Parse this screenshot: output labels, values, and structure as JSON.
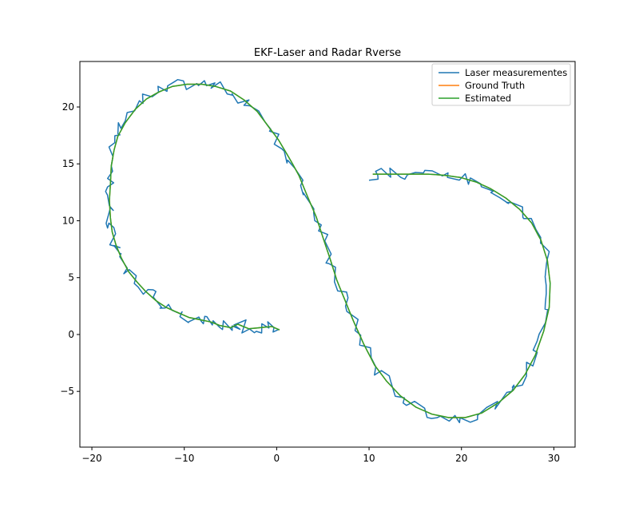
{
  "chart_data": {
    "type": "line",
    "title": "EKF-Laser and Radar Rverse",
    "xlabel": "",
    "ylabel": "",
    "xlim": [
      -21.3,
      32.3
    ],
    "ylim": [
      -9.9,
      24.0
    ],
    "x_ticks": [
      -20,
      -10,
      0,
      10,
      20,
      30
    ],
    "y_ticks": [
      -5,
      0,
      5,
      10,
      15,
      20
    ],
    "x_tick_labels": [
      "−20",
      "−10",
      "0",
      "10",
      "20",
      "30"
    ],
    "y_tick_labels": [
      "−5",
      "0",
      "5",
      "10",
      "15",
      "20"
    ],
    "grid": false,
    "legend_position": "top-right",
    "series": [
      {
        "name": "Laser measurementes",
        "color": "#1f77b4",
        "noisy": true,
        "points": [
          [
            0.3,
            0.4
          ],
          [
            -0.5,
            0.7
          ],
          [
            -1.8,
            0.6
          ],
          [
            -3.0,
            0.5
          ],
          [
            -4.2,
            0.9
          ],
          [
            -5.0,
            0.6
          ],
          [
            -6.2,
            0.8
          ],
          [
            -7.1,
            1.1
          ],
          [
            -8.3,
            1.3
          ],
          [
            -9.5,
            1.5
          ],
          [
            -10.9,
            2.0
          ],
          [
            -12.0,
            2.4
          ],
          [
            -13.1,
            3.0
          ],
          [
            -14.2,
            3.8
          ],
          [
            -15.1,
            4.6
          ],
          [
            -16.0,
            5.5
          ],
          [
            -16.8,
            6.7
          ],
          [
            -17.4,
            7.9
          ],
          [
            -17.8,
            9.0
          ],
          [
            -18.0,
            10.3
          ],
          [
            -18.1,
            11.8
          ],
          [
            -18.0,
            13.2
          ],
          [
            -17.9,
            14.8
          ],
          [
            -17.6,
            16.2
          ],
          [
            -17.2,
            17.4
          ],
          [
            -16.4,
            18.6
          ],
          [
            -15.3,
            19.8
          ],
          [
            -14.1,
            20.7
          ],
          [
            -12.8,
            21.3
          ],
          [
            -11.3,
            21.8
          ],
          [
            -9.7,
            22.0
          ],
          [
            -8.1,
            22.0
          ],
          [
            -6.6,
            21.8
          ],
          [
            -5.0,
            21.4
          ],
          [
            -3.5,
            20.6
          ],
          [
            -2.1,
            19.6
          ],
          [
            -1.0,
            18.4
          ],
          [
            0.2,
            17.1
          ],
          [
            1.3,
            15.6
          ],
          [
            2.4,
            14.0
          ],
          [
            3.3,
            12.2
          ],
          [
            4.3,
            10.3
          ],
          [
            5.1,
            8.3
          ],
          [
            5.8,
            6.6
          ],
          [
            6.5,
            4.8
          ],
          [
            7.4,
            3.0
          ],
          [
            8.3,
            1.2
          ],
          [
            9.4,
            -0.8
          ],
          [
            10.6,
            -2.7
          ],
          [
            11.9,
            -4.1
          ],
          [
            13.4,
            -5.4
          ],
          [
            15.1,
            -6.4
          ],
          [
            16.8,
            -7.0
          ],
          [
            18.6,
            -7.3
          ],
          [
            20.4,
            -7.3
          ],
          [
            22.2,
            -6.9
          ],
          [
            24.0,
            -6.0
          ],
          [
            25.6,
            -4.9
          ],
          [
            26.9,
            -3.5
          ],
          [
            28.0,
            -1.8
          ],
          [
            28.9,
            0.3
          ],
          [
            29.5,
            2.4
          ],
          [
            29.6,
            4.5
          ],
          [
            29.3,
            6.5
          ],
          [
            28.6,
            8.3
          ],
          [
            27.6,
            9.8
          ],
          [
            26.3,
            11.0
          ],
          [
            24.8,
            12.0
          ],
          [
            23.2,
            12.8
          ],
          [
            21.6,
            13.4
          ],
          [
            19.9,
            13.8
          ],
          [
            18.1,
            14.0
          ],
          [
            16.4,
            14.1
          ],
          [
            14.6,
            14.1
          ],
          [
            12.8,
            14.1
          ],
          [
            11.0,
            14.1
          ],
          [
            10.4,
            14.1
          ]
        ]
      },
      {
        "name": "Ground Truth",
        "color": "#ff7f0e",
        "noisy": false,
        "points": [
          [
            0.3,
            0.4
          ],
          [
            -0.5,
            0.7
          ],
          [
            -1.8,
            0.6
          ],
          [
            -3.0,
            0.5
          ],
          [
            -4.2,
            0.9
          ],
          [
            -5.0,
            0.6
          ],
          [
            -6.2,
            0.8
          ],
          [
            -7.1,
            1.1
          ],
          [
            -8.3,
            1.3
          ],
          [
            -9.5,
            1.5
          ],
          [
            -10.9,
            2.0
          ],
          [
            -12.0,
            2.4
          ],
          [
            -13.1,
            3.0
          ],
          [
            -14.2,
            3.8
          ],
          [
            -15.1,
            4.6
          ],
          [
            -16.0,
            5.5
          ],
          [
            -16.8,
            6.7
          ],
          [
            -17.4,
            7.9
          ],
          [
            -17.8,
            9.0
          ],
          [
            -18.0,
            10.3
          ],
          [
            -18.1,
            11.8
          ],
          [
            -18.0,
            13.2
          ],
          [
            -17.9,
            14.8
          ],
          [
            -17.6,
            16.2
          ],
          [
            -17.2,
            17.4
          ],
          [
            -16.4,
            18.6
          ],
          [
            -15.3,
            19.8
          ],
          [
            -14.1,
            20.7
          ],
          [
            -12.8,
            21.3
          ],
          [
            -11.3,
            21.8
          ],
          [
            -9.7,
            22.0
          ],
          [
            -8.1,
            22.0
          ],
          [
            -6.6,
            21.8
          ],
          [
            -5.0,
            21.4
          ],
          [
            -3.5,
            20.6
          ],
          [
            -2.1,
            19.6
          ],
          [
            -1.0,
            18.4
          ],
          [
            0.2,
            17.1
          ],
          [
            1.3,
            15.6
          ],
          [
            2.4,
            14.0
          ],
          [
            3.3,
            12.2
          ],
          [
            4.3,
            10.3
          ],
          [
            5.1,
            8.3
          ],
          [
            5.8,
            6.6
          ],
          [
            6.5,
            4.8
          ],
          [
            7.4,
            3.0
          ],
          [
            8.3,
            1.2
          ],
          [
            9.4,
            -0.8
          ],
          [
            10.6,
            -2.7
          ],
          [
            11.9,
            -4.1
          ],
          [
            13.4,
            -5.4
          ],
          [
            15.1,
            -6.4
          ],
          [
            16.8,
            -7.0
          ],
          [
            18.6,
            -7.3
          ],
          [
            20.4,
            -7.3
          ],
          [
            22.2,
            -6.9
          ],
          [
            24.0,
            -6.0
          ],
          [
            25.6,
            -4.9
          ],
          [
            26.9,
            -3.5
          ],
          [
            28.0,
            -1.8
          ],
          [
            28.9,
            0.3
          ],
          [
            29.5,
            2.4
          ],
          [
            29.6,
            4.5
          ],
          [
            29.3,
            6.5
          ],
          [
            28.6,
            8.3
          ],
          [
            27.6,
            9.8
          ],
          [
            26.3,
            11.0
          ],
          [
            24.8,
            12.0
          ],
          [
            23.2,
            12.8
          ],
          [
            21.6,
            13.4
          ],
          [
            19.9,
            13.8
          ],
          [
            18.1,
            14.0
          ],
          [
            16.4,
            14.1
          ],
          [
            14.6,
            14.1
          ],
          [
            12.8,
            14.1
          ],
          [
            11.0,
            14.1
          ],
          [
            10.4,
            14.1
          ]
        ]
      },
      {
        "name": "Estimated",
        "color": "#2ca02c",
        "noisy": false,
        "points": [
          [
            0.3,
            0.4
          ],
          [
            -0.5,
            0.7
          ],
          [
            -1.8,
            0.6
          ],
          [
            -3.0,
            0.5
          ],
          [
            -4.2,
            0.9
          ],
          [
            -5.0,
            0.6
          ],
          [
            -6.2,
            0.8
          ],
          [
            -7.1,
            1.1
          ],
          [
            -8.3,
            1.3
          ],
          [
            -9.5,
            1.5
          ],
          [
            -10.9,
            2.0
          ],
          [
            -12.0,
            2.4
          ],
          [
            -13.1,
            3.0
          ],
          [
            -14.2,
            3.8
          ],
          [
            -15.1,
            4.6
          ],
          [
            -16.0,
            5.5
          ],
          [
            -16.8,
            6.7
          ],
          [
            -17.4,
            7.9
          ],
          [
            -17.8,
            9.0
          ],
          [
            -18.0,
            10.3
          ],
          [
            -18.1,
            11.8
          ],
          [
            -18.0,
            13.2
          ],
          [
            -17.9,
            14.8
          ],
          [
            -17.6,
            16.2
          ],
          [
            -17.2,
            17.4
          ],
          [
            -16.4,
            18.6
          ],
          [
            -15.3,
            19.8
          ],
          [
            -14.1,
            20.7
          ],
          [
            -12.8,
            21.3
          ],
          [
            -11.3,
            21.8
          ],
          [
            -9.7,
            22.0
          ],
          [
            -8.1,
            22.0
          ],
          [
            -6.6,
            21.8
          ],
          [
            -5.0,
            21.4
          ],
          [
            -3.5,
            20.6
          ],
          [
            -2.1,
            19.6
          ],
          [
            -1.0,
            18.4
          ],
          [
            0.2,
            17.1
          ],
          [
            1.3,
            15.6
          ],
          [
            2.4,
            14.0
          ],
          [
            3.3,
            12.2
          ],
          [
            4.3,
            10.3
          ],
          [
            5.1,
            8.3
          ],
          [
            5.8,
            6.6
          ],
          [
            6.5,
            4.8
          ],
          [
            7.4,
            3.0
          ],
          [
            8.3,
            1.2
          ],
          [
            9.4,
            -0.8
          ],
          [
            10.6,
            -2.7
          ],
          [
            11.9,
            -4.1
          ],
          [
            13.4,
            -5.4
          ],
          [
            15.1,
            -6.4
          ],
          [
            16.8,
            -7.0
          ],
          [
            18.6,
            -7.3
          ],
          [
            20.4,
            -7.3
          ],
          [
            22.2,
            -6.9
          ],
          [
            24.0,
            -6.0
          ],
          [
            25.6,
            -4.9
          ],
          [
            26.9,
            -3.5
          ],
          [
            28.0,
            -1.8
          ],
          [
            28.9,
            0.3
          ],
          [
            29.5,
            2.4
          ],
          [
            29.6,
            4.5
          ],
          [
            29.3,
            6.5
          ],
          [
            28.6,
            8.3
          ],
          [
            27.6,
            9.8
          ],
          [
            26.3,
            11.0
          ],
          [
            24.8,
            12.0
          ],
          [
            23.2,
            12.8
          ],
          [
            21.6,
            13.4
          ],
          [
            19.9,
            13.8
          ],
          [
            18.1,
            14.0
          ],
          [
            16.4,
            14.1
          ],
          [
            14.6,
            14.1
          ],
          [
            12.8,
            14.1
          ],
          [
            11.0,
            14.1
          ],
          [
            10.4,
            14.1
          ]
        ]
      }
    ]
  }
}
